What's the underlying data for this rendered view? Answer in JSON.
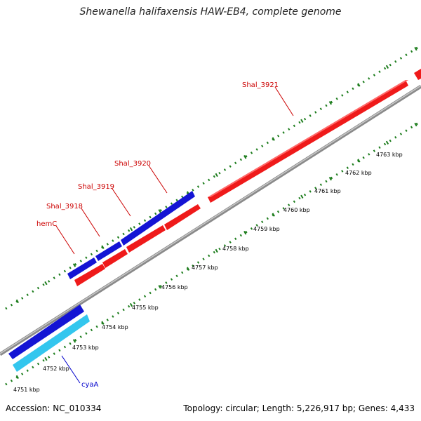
{
  "title": "Shewanella halifaxensis HAW-EB4, complete genome",
  "footer": {
    "accession": "Accession: NC_010334",
    "summary": "Topology: circular; Length: 5,226,917 bp; Genes: 4,433"
  },
  "colors": {
    "backbone": "#8a8a8a",
    "forward_gene": "#ef1a1a",
    "reverse_gene": "#1414d4",
    "other_gene": "#33c6ee",
    "tick": "#1d7d1d",
    "forward_label": "#cc0000",
    "reverse_label": "#0000cc"
  },
  "scale": {
    "unit": "kbp",
    "labels": [
      "4751 kbp",
      "4752 kbp",
      "4753 kbp",
      "4754 kbp",
      "4755 kbp",
      "4756 kbp",
      "4757 kbp",
      "4758 kbp",
      "4759 kbp",
      "4760 kbp",
      "4761 kbp",
      "4762 kbp",
      "4763 kbp"
    ]
  },
  "gene_labels": [
    {
      "name": "Shal_3921",
      "strand": "forward"
    },
    {
      "name": "Shal_3920",
      "strand": "forward"
    },
    {
      "name": "Shal_3919",
      "strand": "forward"
    },
    {
      "name": "Shal_3918",
      "strand": "forward"
    },
    {
      "name": "hemC",
      "strand": "forward"
    },
    {
      "name": "cyaA",
      "strand": "reverse"
    }
  ]
}
